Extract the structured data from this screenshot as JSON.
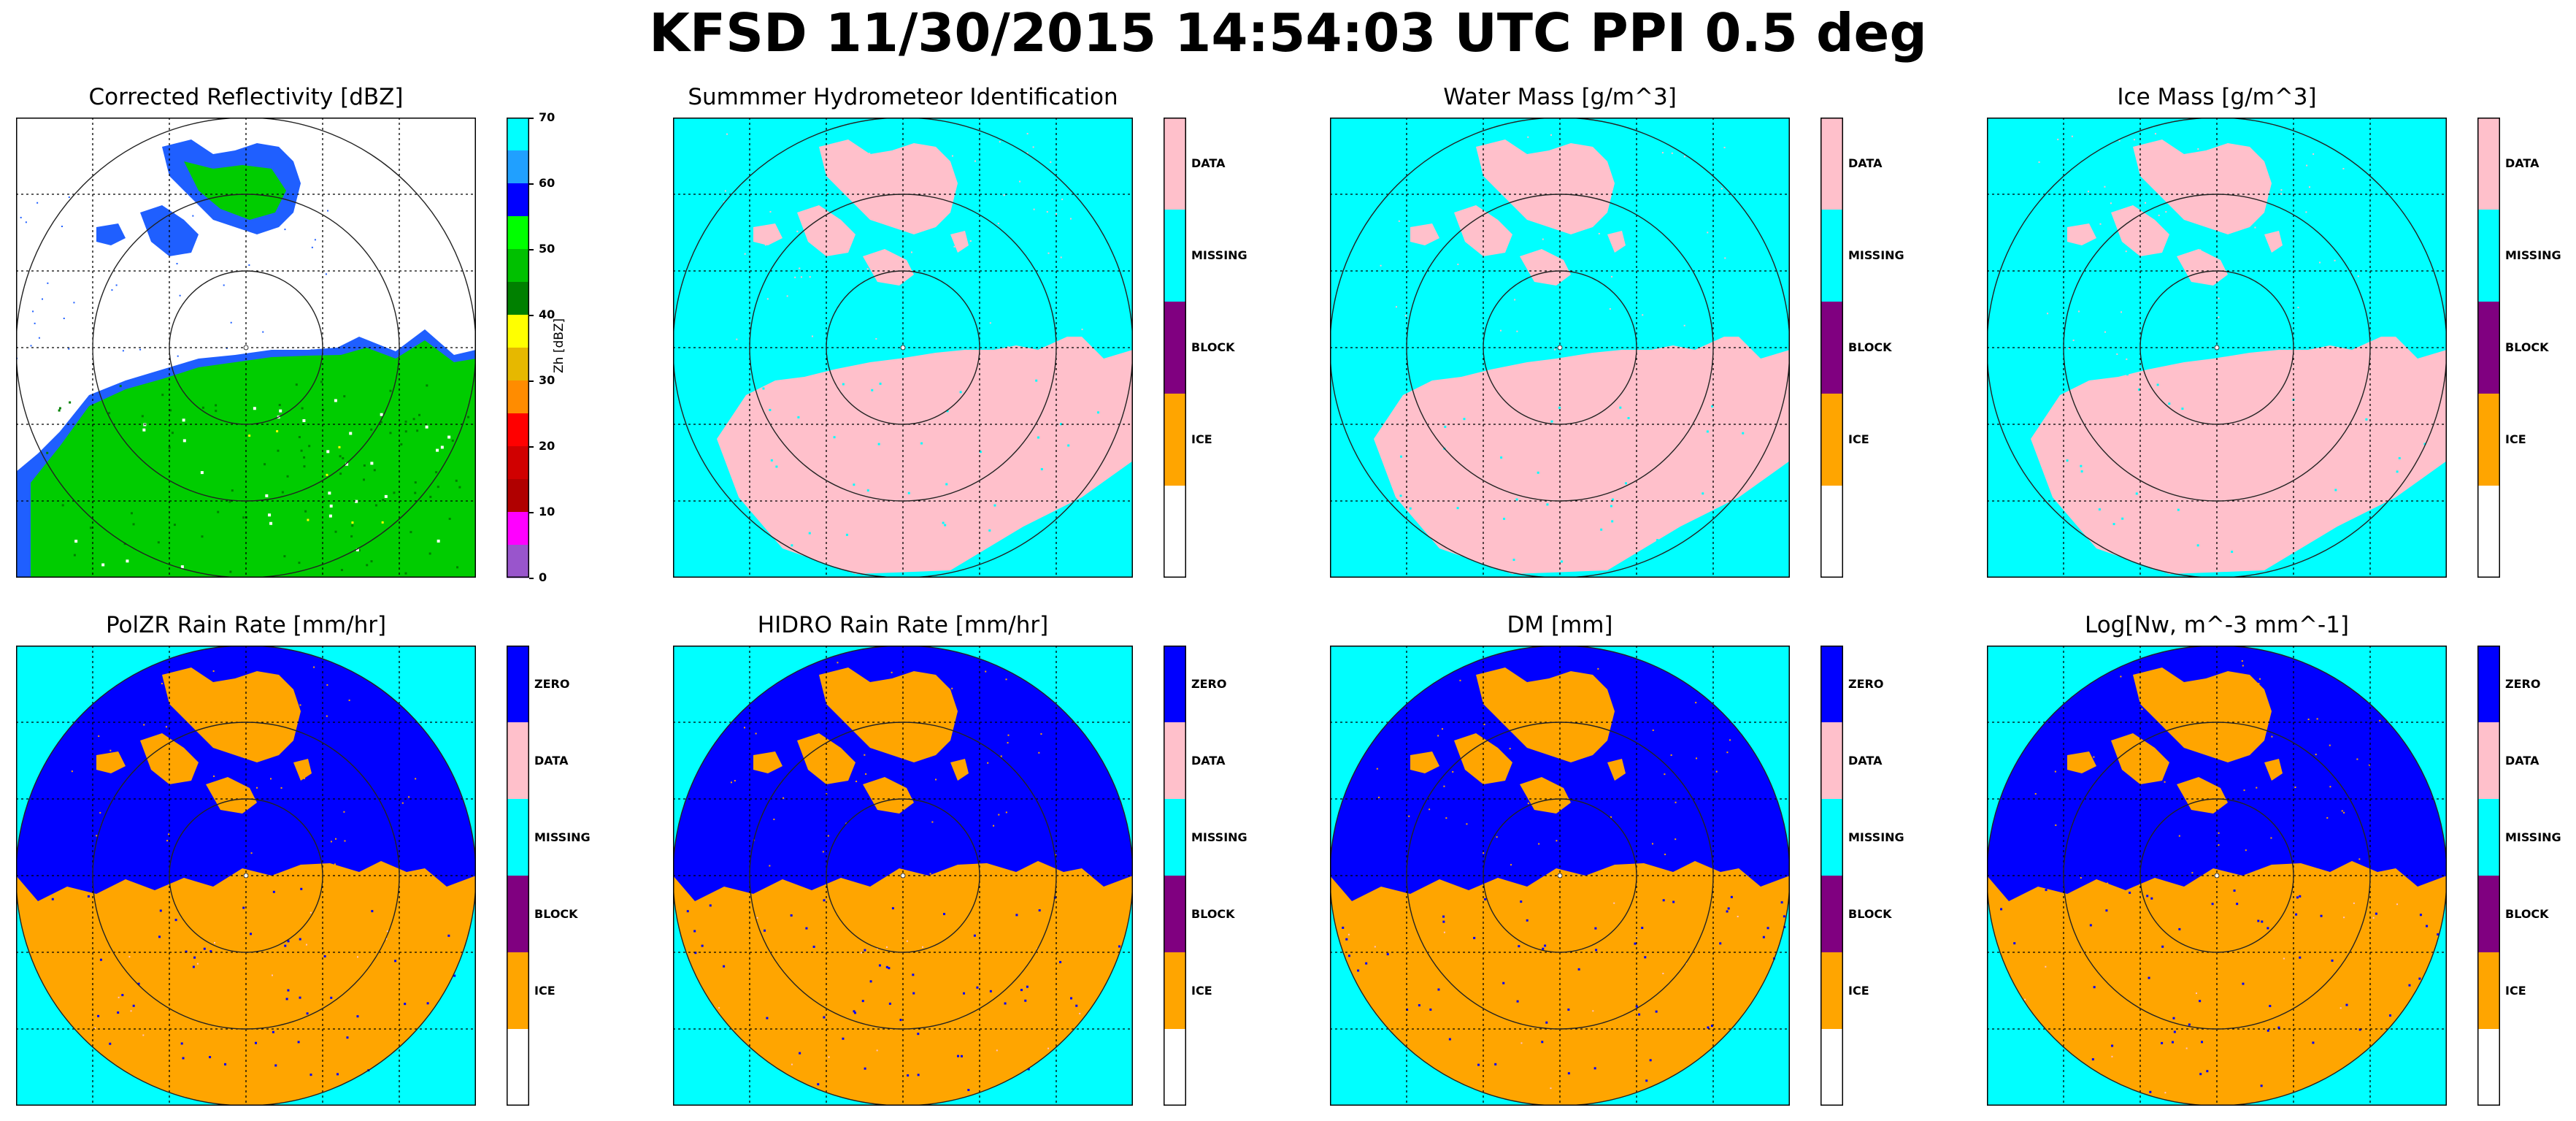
{
  "figure_title": "KFSD 11/30/2015 14:54:03 UTC PPI 0.5 deg",
  "colors": {
    "blue": "#0000ff",
    "orange": "#ffa500",
    "pink": "#ffc0cb",
    "cyan": "#00ffff",
    "purple": "#800080",
    "white": "#ffffff",
    "refl_green": "#00cc00",
    "refl_blue": "#1f5fff"
  },
  "chart_data": [
    {
      "type": "heatmap",
      "title": "Corrected Reflectivity [dBZ]",
      "colorbar": {
        "label": "Zh [dBZ]",
        "ticks": [
          "0",
          "10",
          "20",
          "30",
          "40",
          "50",
          "60",
          "70"
        ],
        "range": [
          0,
          70
        ],
        "colors": [
          "#00ffff",
          "#20a0ff",
          "#0000ff",
          "#00ff00",
          "#00c000",
          "#008000",
          "#ffff00",
          "#e6b800",
          "#ff8c00",
          "#ff0000",
          "#d00000",
          "#b00000",
          "#ff00ff",
          "#9955cc"
        ]
      }
    },
    {
      "type": "heatmap",
      "title": "Summmer Hydrometeor Identification",
      "colorbar": {
        "categories": [
          "DATA",
          "MISSING",
          "BLOCK",
          "ICE",
          ""
        ],
        "colors": [
          "#ffc0cb",
          "#00ffff",
          "#800080",
          "#ffa500",
          "#ffffff"
        ]
      }
    },
    {
      "type": "heatmap",
      "title": "Water Mass [g/m^3]",
      "colorbar": {
        "categories": [
          "DATA",
          "MISSING",
          "BLOCK",
          "ICE",
          ""
        ],
        "colors": [
          "#ffc0cb",
          "#00ffff",
          "#800080",
          "#ffa500",
          "#ffffff"
        ]
      }
    },
    {
      "type": "heatmap",
      "title": "Ice Mass [g/m^3]",
      "colorbar": {
        "categories": [
          "DATA",
          "MISSING",
          "BLOCK",
          "ICE",
          ""
        ],
        "colors": [
          "#ffc0cb",
          "#00ffff",
          "#800080",
          "#ffa500",
          "#ffffff"
        ]
      }
    },
    {
      "type": "heatmap",
      "title": "PolZR Rain Rate [mm/hr]",
      "colorbar": {
        "categories": [
          "ZERO",
          "DATA",
          "MISSING",
          "BLOCK",
          "ICE",
          ""
        ],
        "colors": [
          "#0000ff",
          "#ffc0cb",
          "#00ffff",
          "#800080",
          "#ffa500",
          "#ffffff"
        ]
      }
    },
    {
      "type": "heatmap",
      "title": "HIDRO Rain Rate [mm/hr]",
      "colorbar": {
        "categories": [
          "ZERO",
          "DATA",
          "MISSING",
          "BLOCK",
          "ICE",
          ""
        ],
        "colors": [
          "#0000ff",
          "#ffc0cb",
          "#00ffff",
          "#800080",
          "#ffa500",
          "#ffffff"
        ]
      }
    },
    {
      "type": "heatmap",
      "title": "DM [mm]",
      "colorbar": {
        "categories": [
          "ZERO",
          "DATA",
          "MISSING",
          "BLOCK",
          "ICE",
          ""
        ],
        "colors": [
          "#0000ff",
          "#ffc0cb",
          "#00ffff",
          "#800080",
          "#ffa500",
          "#ffffff"
        ]
      }
    },
    {
      "type": "heatmap",
      "title": "Log[Nw, m^-3 mm^-1]",
      "colorbar": {
        "categories": [
          "ZERO",
          "DATA",
          "MISSING",
          "BLOCK",
          "ICE",
          ""
        ],
        "colors": [
          "#0000ff",
          "#ffc0cb",
          "#00ffff",
          "#800080",
          "#ffa500",
          "#ffffff"
        ]
      }
    }
  ]
}
